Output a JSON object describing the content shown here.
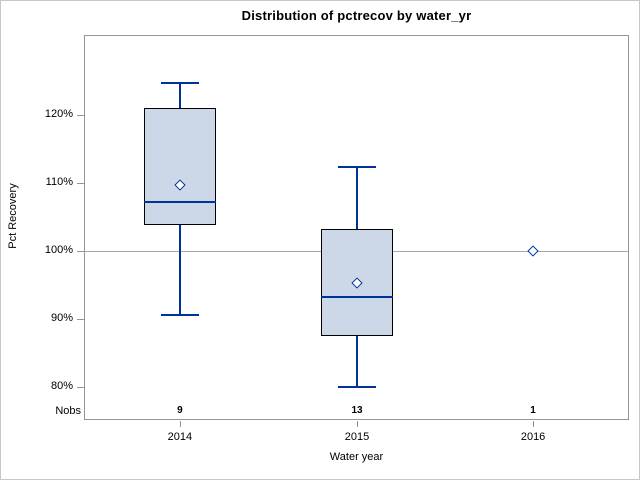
{
  "chart_data": {
    "type": "boxplot",
    "title": "Distribution of pctrecov by water_yr",
    "xlabel": "Water year",
    "ylabel": "Pct Recovery",
    "categories": [
      "2014",
      "2015",
      "2016"
    ],
    "nobs_label": "Nobs",
    "nobs": [
      "9",
      "13",
      "1"
    ],
    "ylim": [
      75,
      132
    ],
    "yticks": [
      {
        "value": 120,
        "label": "120%"
      },
      {
        "value": 110,
        "label": "110%"
      },
      {
        "value": 100,
        "label": "100%"
      },
      {
        "value": 90,
        "label": "90%"
      },
      {
        "value": 80,
        "label": "80%"
      }
    ],
    "ref_line": 100,
    "grid": false,
    "legend": "none",
    "boxes": [
      {
        "category": "2014",
        "whisker_low": 90.6,
        "q1": 103.8,
        "median": 107.2,
        "q3": 121.1,
        "whisker_high": 124.8,
        "mean": 109.7,
        "nobs": 9
      },
      {
        "category": "2015",
        "whisker_low": 80.0,
        "q1": 87.5,
        "median": 93.2,
        "q3": 103.3,
        "whisker_high": 112.4,
        "mean": 95.3,
        "nobs": 13
      },
      {
        "category": "2016",
        "value": 100.0,
        "mean": 100.0,
        "nobs": 1
      }
    ],
    "colors": {
      "box_fill": "#ccd8e8",
      "box_border": "#000000",
      "whisker": "#003399",
      "median": "#003399",
      "mean_marker": "#003399",
      "ref_line": "#a8a8a8",
      "frame": "#90969b",
      "text": "#000000"
    }
  }
}
